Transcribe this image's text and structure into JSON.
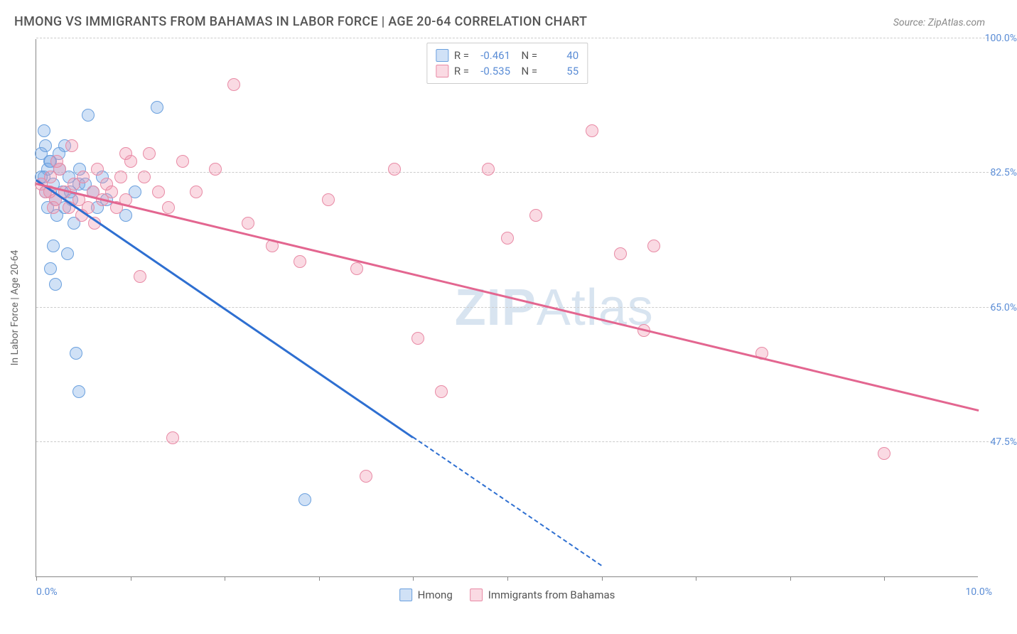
{
  "title": "HMONG VS IMMIGRANTS FROM BAHAMAS IN LABOR FORCE | AGE 20-64 CORRELATION CHART",
  "source_label": "Source: ZipAtlas.com",
  "watermark": {
    "bold": "ZIP",
    "rest": "Atlas"
  },
  "chart": {
    "type": "scatter",
    "background_color": "#ffffff",
    "grid_color": "#cccccc",
    "axis_color": "#888888",
    "label_color": "#666666",
    "tick_label_color": "#5b8dd6",
    "title_fontsize": 18,
    "tick_fontsize": 14,
    "yaxis_label": "In Labor Force | Age 20-64",
    "xlim": [
      0.0,
      10.0
    ],
    "ylim": [
      30.0,
      100.0
    ],
    "xlim_labels": [
      "0.0%",
      "10.0%"
    ],
    "xtick_positions": [
      0.0,
      1.0,
      2.0,
      3.0,
      4.0,
      5.0,
      6.0,
      7.0,
      8.0,
      9.0
    ],
    "yticks": [
      {
        "v": 47.5,
        "label": "47.5%"
      },
      {
        "v": 65.0,
        "label": "65.0%"
      },
      {
        "v": 82.5,
        "label": "82.5%"
      },
      {
        "v": 100.0,
        "label": "100.0%"
      }
    ],
    "marker_radius": 9,
    "marker_stroke_width": 1.5,
    "line_width": 2.5,
    "series": [
      {
        "name": "Hmong",
        "fill": "rgba(120,170,230,0.35)",
        "stroke": "#6aa0de",
        "line_color": "#2e6fd1",
        "R": "-0.461",
        "N": "40",
        "trend": {
          "x1": 0.0,
          "y1": 81.5,
          "x2": 4.0,
          "y2": 48.0
        },
        "trend_dash": {
          "x1": 4.0,
          "y1": 48.0,
          "x2": 6.0,
          "y2": 31.3
        },
        "points": [
          [
            0.05,
            85
          ],
          [
            0.08,
            82
          ],
          [
            0.1,
            80
          ],
          [
            0.12,
            78
          ],
          [
            0.1,
            86
          ],
          [
            0.15,
            84
          ],
          [
            0.18,
            81
          ],
          [
            0.2,
            79
          ],
          [
            0.22,
            77
          ],
          [
            0.25,
            83
          ],
          [
            0.28,
            80
          ],
          [
            0.3,
            78
          ],
          [
            0.35,
            82
          ],
          [
            0.38,
            79
          ],
          [
            0.4,
            76
          ],
          [
            0.45,
            81
          ],
          [
            0.18,
            73
          ],
          [
            0.15,
            70
          ],
          [
            0.55,
            90
          ],
          [
            0.6,
            80
          ],
          [
            0.65,
            78
          ],
          [
            0.7,
            82
          ],
          [
            0.75,
            79
          ],
          [
            0.08,
            88
          ],
          [
            0.33,
            72
          ],
          [
            0.2,
            68
          ],
          [
            0.42,
            59
          ],
          [
            0.45,
            54
          ],
          [
            0.95,
            77
          ],
          [
            1.05,
            80
          ],
          [
            1.28,
            91
          ],
          [
            0.3,
            86
          ],
          [
            0.14,
            84
          ],
          [
            0.24,
            85
          ],
          [
            0.46,
            83
          ],
          [
            0.52,
            81
          ],
          [
            0.36,
            80
          ],
          [
            0.12,
            83
          ],
          [
            2.85,
            40
          ],
          [
            0.05,
            82
          ]
        ]
      },
      {
        "name": "Immigrants from Bahamas",
        "fill": "rgba(240,150,175,0.35)",
        "stroke": "#e88aa5",
        "line_color": "#e36690",
        "R": "-0.535",
        "N": "55",
        "trend": {
          "x1": 0.0,
          "y1": 81.0,
          "x2": 10.0,
          "y2": 51.5
        },
        "points": [
          [
            0.05,
            81
          ],
          [
            0.1,
            80
          ],
          [
            0.15,
            82
          ],
          [
            0.2,
            79
          ],
          [
            0.25,
            83
          ],
          [
            0.3,
            80
          ],
          [
            0.35,
            78
          ],
          [
            0.4,
            81
          ],
          [
            0.45,
            79
          ],
          [
            0.5,
            82
          ],
          [
            0.55,
            78
          ],
          [
            0.6,
            80
          ],
          [
            0.65,
            83
          ],
          [
            0.7,
            79
          ],
          [
            0.75,
            81
          ],
          [
            0.8,
            80
          ],
          [
            0.85,
            78
          ],
          [
            0.9,
            82
          ],
          [
            0.95,
            79
          ],
          [
            1.0,
            84
          ],
          [
            1.15,
            82
          ],
          [
            1.3,
            80
          ],
          [
            1.4,
            78
          ],
          [
            1.55,
            84
          ],
          [
            1.7,
            80
          ],
          [
            1.9,
            83
          ],
          [
            2.1,
            94
          ],
          [
            2.25,
            76
          ],
          [
            2.5,
            73
          ],
          [
            2.8,
            71
          ],
          [
            3.1,
            79
          ],
          [
            3.4,
            70
          ],
          [
            3.8,
            83
          ],
          [
            4.05,
            61
          ],
          [
            4.3,
            54
          ],
          [
            4.8,
            83
          ],
          [
            5.0,
            74
          ],
          [
            5.3,
            77
          ],
          [
            5.9,
            88
          ],
          [
            6.2,
            72
          ],
          [
            6.45,
            62
          ],
          [
            6.55,
            73
          ],
          [
            7.7,
            59
          ],
          [
            9.0,
            46
          ],
          [
            1.1,
            69
          ],
          [
            1.45,
            48
          ],
          [
            3.5,
            43
          ],
          [
            1.2,
            85
          ],
          [
            0.38,
            86
          ],
          [
            0.95,
            85
          ],
          [
            0.22,
            84
          ],
          [
            0.48,
            77
          ],
          [
            0.62,
            76
          ],
          [
            0.18,
            78
          ],
          [
            0.14,
            80
          ]
        ]
      }
    ],
    "legend_bottom": [
      {
        "label": "Hmong",
        "fill": "rgba(120,170,230,0.35)",
        "stroke": "#6aa0de"
      },
      {
        "label": "Immigrants from Bahamas",
        "fill": "rgba(240,150,175,0.35)",
        "stroke": "#e88aa5"
      }
    ]
  }
}
